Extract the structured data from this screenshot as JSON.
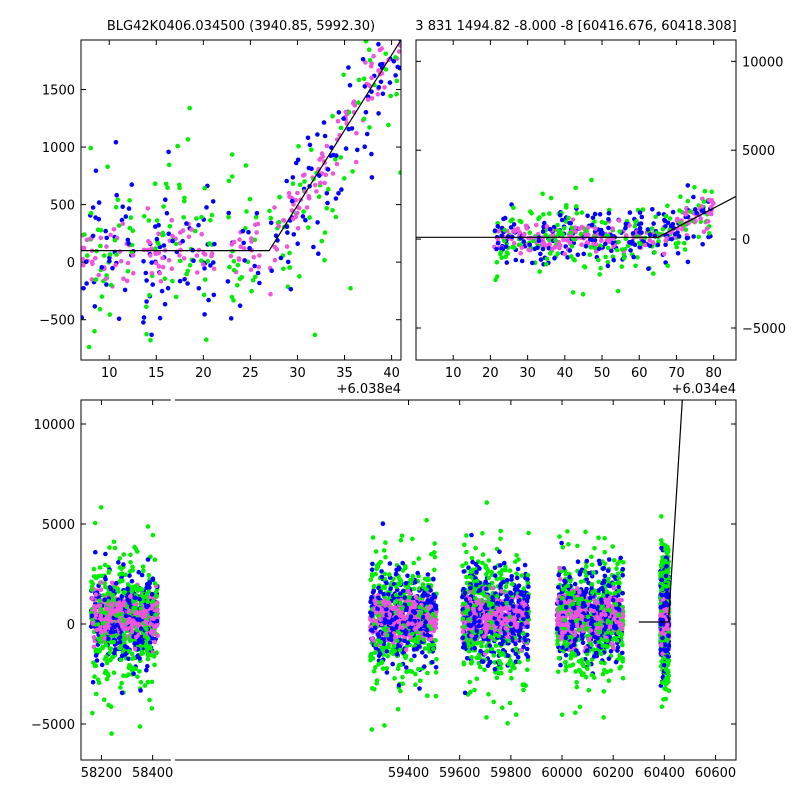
{
  "chart_data": [
    {
      "id": "top-left",
      "type": "scatter",
      "title": "BLG42K0406.034500 (3940.85, 5992.30)",
      "offset_label": "+6.038e4",
      "xlim": [
        7.0,
        41.0
      ],
      "ylim": [
        -850,
        1930
      ],
      "xticks": [
        10,
        15,
        20,
        25,
        30,
        35,
        40
      ],
      "yticks": [
        -500,
        0,
        500,
        1000,
        1500
      ],
      "yaxis_side": "left",
      "grid": false,
      "series_colors": [
        "#0000ff",
        "#00ee00",
        "#ee55dd"
      ],
      "model_line": [
        [
          7.0,
          100
        ],
        [
          27.0,
          100
        ],
        [
          41.0,
          1930
        ]
      ],
      "gaps": [
        [
          12.6,
          13.6
        ],
        [
          21.2,
          22.6
        ],
        [
          26.0,
          27.0
        ]
      ],
      "point_count": 620,
      "noise_sd": 260
    },
    {
      "id": "top-right",
      "type": "scatter",
      "title": "3 831 1494.82 -8.000 -8 [60416.676, 60418.308]",
      "offset_label": "+6.034e4",
      "xlim": [
        0,
        86
      ],
      "ylim": [
        -6800,
        11200
      ],
      "xticks": [
        10,
        20,
        30,
        40,
        50,
        60,
        70,
        80
      ],
      "yticks": [
        -5000,
        0,
        5000,
        10000
      ],
      "yaxis_side": "right",
      "grid": false,
      "series_colors": [
        "#0000ff",
        "#00ee00",
        "#ee55dd"
      ],
      "model_line": [
        [
          0,
          100
        ],
        [
          65,
          100
        ],
        [
          86,
          2400
        ]
      ],
      "gaps": [
        [
          0,
          21
        ],
        [
          80,
          86
        ]
      ],
      "point_count": 900,
      "noise_sd": 700
    },
    {
      "id": "bottom",
      "type": "scatter",
      "title": "",
      "offset_label": "",
      "xlim": [
        58120,
        60680
      ],
      "ylim": [
        -6800,
        11200
      ],
      "xticks": [
        58200,
        58400,
        59400,
        59600,
        59800,
        60000,
        60200,
        60400,
        60600
      ],
      "yticks": [
        -5000,
        0,
        5000,
        10000
      ],
      "yaxis_side": "left",
      "grid": false,
      "broken_axis_at": 58440,
      "series_colors": [
        "#0000ff",
        "#00ee00",
        "#ee55dd"
      ],
      "model_line": [
        [
          60300,
          100
        ],
        [
          60416,
          100
        ],
        [
          60470,
          11200
        ]
      ],
      "seasons": [
        [
          58160,
          58420
        ],
        [
          59250,
          59510
        ],
        [
          59610,
          59870
        ],
        [
          59980,
          60240
        ],
        [
          60385,
          60418
        ]
      ],
      "point_count": 5200,
      "noise_sd": 1100
    }
  ]
}
